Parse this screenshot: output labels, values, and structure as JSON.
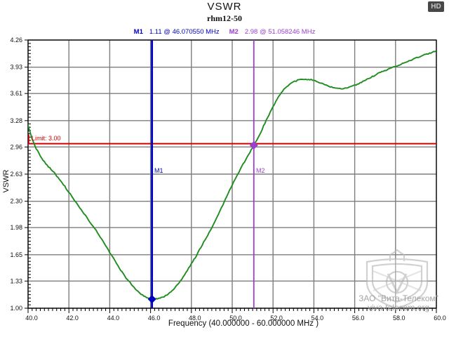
{
  "header": {
    "title": "VSWR",
    "subtitle": "rhm12-50",
    "hd_badge": "HD"
  },
  "markers": {
    "m1": {
      "name": "M1",
      "readout": "1.11 @ 46.070550 MHz",
      "freq_mhz": 46.07055,
      "vswr": 1.11,
      "color": "#0000bf"
    },
    "m2": {
      "name": "M2",
      "readout": "2.98 @ 51.058246 MHz",
      "freq_mhz": 51.058246,
      "vswr": 2.98,
      "color": "#9b3fd0"
    }
  },
  "limit": {
    "label": "Limit: 3.00",
    "value": 3.0,
    "color": "#d40000"
  },
  "watermark": {
    "line1": "ЗАО \"Вита-Телеком\"",
    "line2": "viva-telecom.org"
  },
  "chart_data": {
    "type": "line",
    "title": "VSWR",
    "subtitle": "rhm12-50",
    "xlabel": "Frequency (40.000000 - 60.000000 MHz )",
    "ylabel": "VSWR",
    "xlim": [
      40.0,
      60.0
    ],
    "ylim": [
      1.0,
      4.26
    ],
    "x_ticks": [
      40.0,
      42.0,
      44.0,
      46.0,
      48.0,
      50.0,
      52.0,
      54.0,
      56.0,
      58.0,
      60.0
    ],
    "y_ticks": [
      1.0,
      1.33,
      1.65,
      1.98,
      2.3,
      2.63,
      2.96,
      3.28,
      3.61,
      3.93,
      4.26
    ],
    "x_minor_step": 0.2,
    "y_minor_divisions": 8,
    "grid": true,
    "grid_color": "#7e7e7e",
    "limit_line": {
      "y": 3.0,
      "color": "#d40000",
      "label": "Limit: 3.00"
    },
    "series": [
      {
        "name": "VSWR",
        "color": "#1e8c1e",
        "x_start": 40.0,
        "x_step": 0.2,
        "values": [
          3.22,
          3.06,
          2.94,
          2.85,
          2.78,
          2.72,
          2.67,
          2.61,
          2.55,
          2.48,
          2.41,
          2.34,
          2.27,
          2.2,
          2.13,
          2.06,
          1.99,
          1.92,
          1.84,
          1.76,
          1.68,
          1.6,
          1.52,
          1.44,
          1.37,
          1.31,
          1.25,
          1.2,
          1.16,
          1.13,
          1.12,
          1.11,
          1.12,
          1.13,
          1.16,
          1.2,
          1.25,
          1.31,
          1.38,
          1.46,
          1.54,
          1.62,
          1.71,
          1.8,
          1.89,
          1.98,
          2.08,
          2.18,
          2.29,
          2.4,
          2.5,
          2.6,
          2.69,
          2.78,
          2.87,
          2.95,
          3.04,
          3.14,
          3.25,
          3.35,
          3.45,
          3.54,
          3.62,
          3.68,
          3.72,
          3.75,
          3.77,
          3.78,
          3.78,
          3.78,
          3.77,
          3.75,
          3.73,
          3.71,
          3.69,
          3.68,
          3.67,
          3.67,
          3.68,
          3.69,
          3.71,
          3.73,
          3.76,
          3.78,
          3.81,
          3.83,
          3.86,
          3.88,
          3.9,
          3.92,
          3.94,
          3.96,
          3.98,
          4.0,
          4.02,
          4.04,
          4.06,
          4.08,
          4.09,
          4.11,
          4.13
        ]
      }
    ],
    "annotations": [
      {
        "name": "M1",
        "x": 46.07055,
        "y": 1.11
      },
      {
        "name": "M2",
        "x": 51.058246,
        "y": 2.98
      }
    ]
  }
}
